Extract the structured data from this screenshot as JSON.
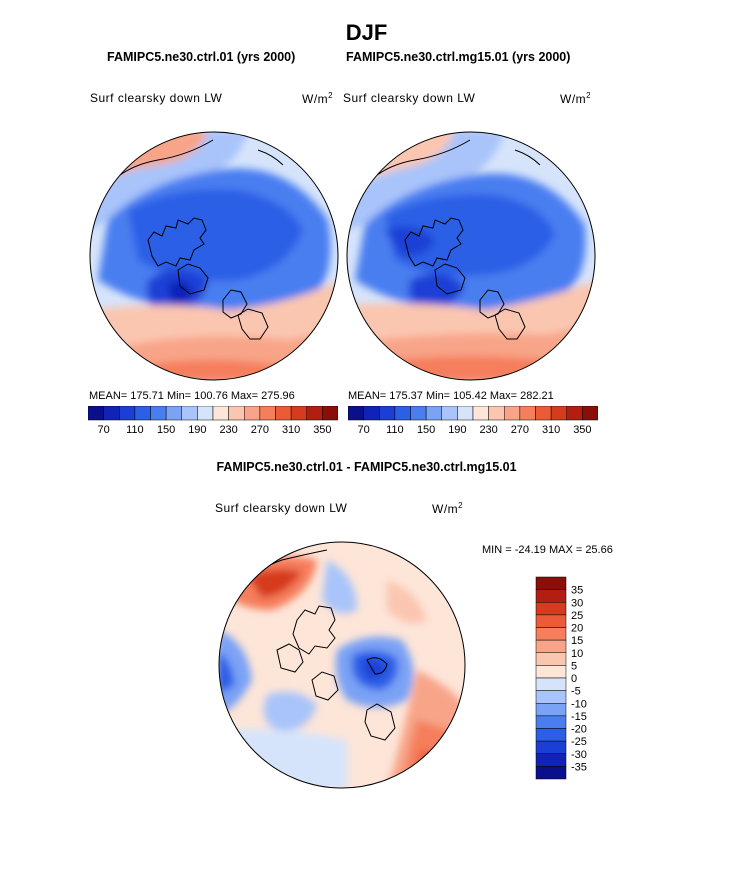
{
  "page_title": "DJF",
  "panels": [
    {
      "subtitle": "FAMIPC5.ne30.ctrl.01 (yrs 2000)",
      "variable": "Surf clearsky down LW",
      "units": "W/m",
      "units_exp": "2",
      "stats": "MEAN= 175.71   Min= 100.76   Max= 275.96"
    },
    {
      "subtitle": "FAMIPC5.ne30.ctrl.mg15.01 (yrs 2000)",
      "variable": "Surf clearsky down LW",
      "units": "W/m",
      "units_exp": "2",
      "stats": "MEAN= 175.37   Min= 105.42   Max= 282.21"
    }
  ],
  "diff_panel": {
    "subtitle": "FAMIPC5.ne30.ctrl.01 - FAMIPC5.ne30.ctrl.mg15.01",
    "variable": "Surf clearsky down LW",
    "units": "W/m",
    "units_exp": "2",
    "minmax": "MIN = -24.19 MAX =  25.66"
  },
  "chart_data": [
    {
      "type": "heatmap",
      "projection": "north polar stereographic",
      "title": "Surf clearsky down LW",
      "units": "W/m^2",
      "mean": 175.71,
      "min": 100.76,
      "max": 275.96,
      "colorbar_labels": [
        "70",
        "110",
        "150",
        "190",
        "230",
        "270",
        "310",
        "350"
      ],
      "colorbar_colors": [
        "#0a0f8c",
        "#1022b8",
        "#1b3fd6",
        "#2a5fe6",
        "#4a7ef0",
        "#7aa2f5",
        "#a9c4fa",
        "#d6e4fb",
        "#fde5d8",
        "#fbc6b0",
        "#f8a488",
        "#f57e5c",
        "#ec5a38",
        "#d63a1f",
        "#b21f10",
        "#8a0f08"
      ]
    },
    {
      "type": "heatmap",
      "projection": "north polar stereographic",
      "title": "Surf clearsky down LW",
      "units": "W/m^2",
      "mean": 175.37,
      "min": 105.42,
      "max": 282.21,
      "colorbar_labels": [
        "70",
        "110",
        "150",
        "190",
        "230",
        "270",
        "310",
        "350"
      ],
      "colorbar_colors": [
        "#0a0f8c",
        "#1022b8",
        "#1b3fd6",
        "#2a5fe6",
        "#4a7ef0",
        "#7aa2f5",
        "#a9c4fa",
        "#d6e4fb",
        "#fde5d8",
        "#fbc6b0",
        "#f8a488",
        "#f57e5c",
        "#ec5a38",
        "#d63a1f",
        "#b21f10",
        "#8a0f08"
      ]
    },
    {
      "type": "heatmap",
      "projection": "north polar stereographic",
      "title": "Surf clearsky down LW (difference)",
      "units": "W/m^2",
      "min": -24.19,
      "max": 25.66,
      "colorbar_labels": [
        "35",
        "30",
        "25",
        "20",
        "15",
        "10",
        "5",
        "0",
        "-5",
        "-10",
        "-15",
        "-20",
        "-25",
        "-30",
        "-35"
      ],
      "colorbar_colors": [
        "#8a0f08",
        "#b21f10",
        "#d63a1f",
        "#ec5a38",
        "#f57e5c",
        "#f8a488",
        "#fbc6b0",
        "#fde5d8",
        "#d6e4fb",
        "#a9c4fa",
        "#7aa2f5",
        "#4a7ef0",
        "#2a5fe6",
        "#1b3fd6",
        "#1022b8",
        "#0a0f8c"
      ]
    }
  ]
}
